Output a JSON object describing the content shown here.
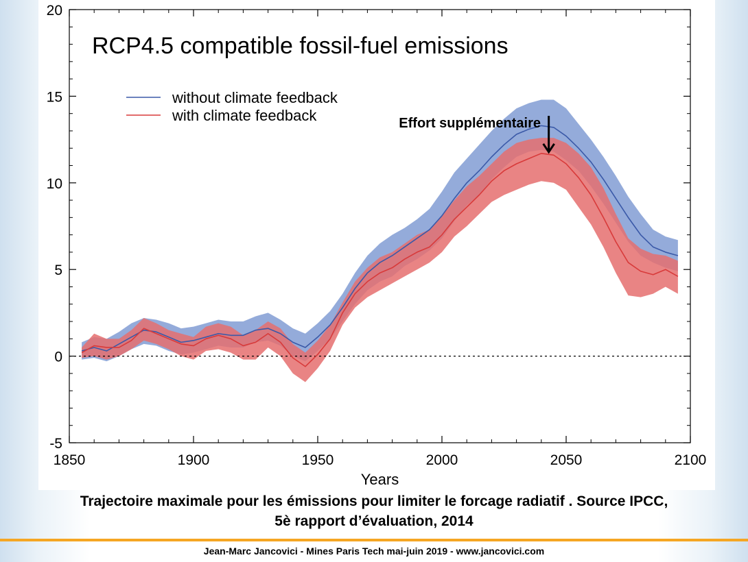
{
  "chart_data": {
    "type": "line",
    "title": "RCP4.5 compatible fossil-fuel emissions",
    "xlabel": "Years",
    "ylabel": "",
    "xlim": [
      1850,
      2100
    ],
    "ylim": [
      -5,
      20
    ],
    "x_ticks": [
      "1850",
      "1900",
      "1950",
      "2000",
      "2050",
      "2100"
    ],
    "y_ticks": [
      "-5",
      "0",
      "5",
      "10",
      "15",
      "20"
    ],
    "x_tick_values": [
      1850,
      1900,
      1950,
      2000,
      2050,
      2100
    ],
    "y_tick_values": [
      -5,
      0,
      5,
      10,
      15,
      20
    ],
    "legend_position": "top-left",
    "zero_line": "dotted",
    "annotation": "Effort supplémentaire",
    "annotation_at": [
      2043,
      12.8
    ],
    "annotation_target": [
      2043,
      11.7
    ],
    "series": [
      {
        "name": "without climate feedback",
        "color": "#3a59a8",
        "band_color": "#8ea6d8",
        "x": [
          1855,
          1860,
          1865,
          1870,
          1875,
          1880,
          1885,
          1890,
          1895,
          1900,
          1905,
          1910,
          1915,
          1920,
          1925,
          1930,
          1935,
          1940,
          1945,
          1950,
          1955,
          1960,
          1965,
          1970,
          1975,
          1980,
          1985,
          1990,
          1995,
          2000,
          2005,
          2010,
          2015,
          2020,
          2025,
          2030,
          2035,
          2040,
          2045,
          2050,
          2055,
          2060,
          2065,
          2070,
          2075,
          2080,
          2085,
          2090,
          2095
        ],
        "values": [
          0.3,
          0.5,
          0.3,
          0.7,
          1.1,
          1.5,
          1.4,
          1.1,
          0.8,
          0.9,
          1.1,
          1.3,
          1.2,
          1.2,
          1.5,
          1.6,
          1.3,
          0.8,
          0.5,
          1.1,
          1.8,
          2.8,
          3.9,
          4.8,
          5.4,
          5.8,
          6.3,
          6.8,
          7.3,
          8.1,
          9.1,
          10.0,
          10.7,
          11.5,
          12.2,
          12.8,
          13.1,
          13.3,
          13.2,
          12.7,
          12.0,
          11.2,
          10.2,
          9.1,
          8.0,
          7.0,
          6.3,
          6.0,
          5.8
        ],
        "lower": [
          -0.2,
          -0.1,
          -0.3,
          0.0,
          0.4,
          0.7,
          0.6,
          0.3,
          0.1,
          0.2,
          0.4,
          0.6,
          0.5,
          0.5,
          0.8,
          0.9,
          0.6,
          0.0,
          -0.3,
          0.3,
          1.0,
          2.0,
          3.0,
          3.8,
          4.3,
          4.6,
          5.2,
          5.6,
          6.1,
          6.8,
          7.8,
          8.7,
          9.3,
          10.2,
          10.9,
          11.5,
          11.8,
          11.9,
          11.8,
          11.3,
          10.7,
          9.8,
          8.8,
          7.7,
          6.6,
          5.8,
          5.4,
          5.1,
          4.9
        ],
        "upper": [
          0.8,
          1.1,
          1.0,
          1.4,
          1.9,
          2.2,
          2.1,
          1.9,
          1.6,
          1.7,
          1.9,
          2.1,
          2.0,
          2.0,
          2.3,
          2.5,
          2.1,
          1.6,
          1.3,
          1.9,
          2.6,
          3.6,
          4.8,
          5.8,
          6.5,
          7.0,
          7.4,
          7.9,
          8.5,
          9.5,
          10.6,
          11.4,
          12.2,
          13.0,
          13.7,
          14.3,
          14.6,
          14.8,
          14.8,
          14.3,
          13.4,
          12.5,
          11.5,
          10.4,
          9.2,
          8.2,
          7.3,
          6.9,
          6.7
        ]
      },
      {
        "name": "with climate feedback",
        "color": "#d83a3a",
        "band_color": "#e56e6e",
        "x": [
          1855,
          1860,
          1865,
          1870,
          1875,
          1880,
          1885,
          1890,
          1895,
          1900,
          1905,
          1910,
          1915,
          1920,
          1925,
          1930,
          1935,
          1940,
          1945,
          1950,
          1955,
          1960,
          1965,
          1970,
          1975,
          1980,
          1985,
          1990,
          1995,
          2000,
          2005,
          2010,
          2015,
          2020,
          2025,
          2030,
          2035,
          2040,
          2045,
          2050,
          2055,
          2060,
          2065,
          2070,
          2075,
          2080,
          2085,
          2090,
          2095
        ],
        "values": [
          0.2,
          0.6,
          0.5,
          0.5,
          0.9,
          1.6,
          1.3,
          1.0,
          0.7,
          0.6,
          1.0,
          1.2,
          1.0,
          0.6,
          0.8,
          1.3,
          0.8,
          -0.1,
          -0.6,
          0.1,
          1.0,
          2.5,
          3.6,
          4.3,
          4.8,
          5.1,
          5.6,
          6.0,
          6.3,
          7.0,
          7.9,
          8.6,
          9.3,
          10.1,
          10.7,
          11.1,
          11.4,
          11.7,
          11.6,
          11.1,
          10.3,
          9.3,
          8.0,
          6.6,
          5.4,
          4.9,
          4.7,
          5.0,
          4.6
        ],
        "lower": [
          -0.1,
          0.0,
          -0.2,
          0.0,
          0.4,
          0.9,
          0.7,
          0.4,
          0.0,
          -0.2,
          0.3,
          0.4,
          0.2,
          -0.2,
          -0.2,
          0.5,
          0.0,
          -1.0,
          -1.5,
          -0.7,
          0.3,
          1.8,
          2.8,
          3.4,
          3.8,
          4.2,
          4.6,
          5.0,
          5.4,
          6.0,
          6.9,
          7.5,
          8.2,
          8.9,
          9.3,
          9.6,
          9.9,
          10.1,
          10.0,
          9.6,
          8.6,
          7.6,
          6.3,
          4.8,
          3.5,
          3.4,
          3.6,
          4.0,
          3.6
        ],
        "upper": [
          0.5,
          1.3,
          1.0,
          1.0,
          1.5,
          2.2,
          1.9,
          1.5,
          1.3,
          1.1,
          1.7,
          1.9,
          1.7,
          1.2,
          1.5,
          2.0,
          1.6,
          0.7,
          0.2,
          0.9,
          1.8,
          3.1,
          4.3,
          5.1,
          5.7,
          6.0,
          6.5,
          7.0,
          7.3,
          8.1,
          9.0,
          9.8,
          10.4,
          11.1,
          11.8,
          12.3,
          12.5,
          12.6,
          12.6,
          12.3,
          11.7,
          10.9,
          9.7,
          8.2,
          6.8,
          6.2,
          5.9,
          5.8,
          5.5
        ]
      }
    ]
  },
  "caption": {
    "line1": "Trajectoire maximale pour les émissions pour limiter le forcage radiatif . Source IPCC,",
    "line2": "5è rapport d’évaluation, 2014"
  },
  "footer": "Jean-Marc Jancovici - Mines Paris Tech mai-juin 2019 - www.jancovici.com"
}
